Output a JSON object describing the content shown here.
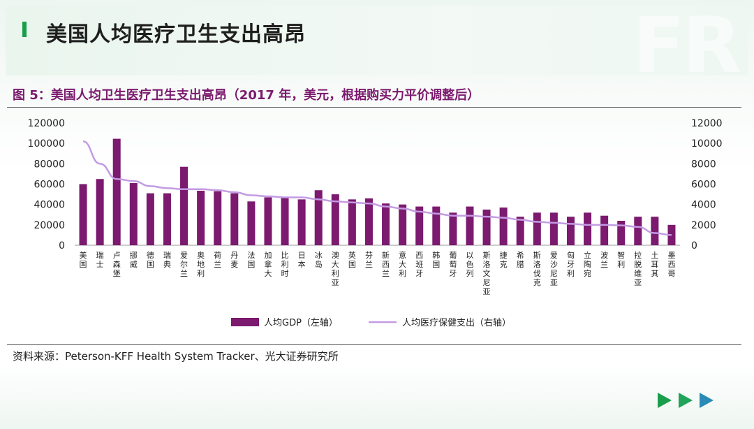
{
  "header": {
    "title": "美国人均医疗卫生支出高昂",
    "watermark": "FR"
  },
  "figure": {
    "caption": "图 5：美国人均卫生医疗卫生支出高昂（2017 年，美元，根据购买力平价调整后）",
    "source": "资料来源：Peterson-KFF Health System Tracker、光大证券研究所"
  },
  "colors": {
    "bar": "#7b1a6e",
    "line": "#c39be3",
    "accent_green": "#1a9e4b",
    "arrow_blue": "#2a8bb5"
  },
  "chart_data": {
    "type": "bar",
    "categories": [
      "美国",
      "瑞士",
      "卢森堡",
      "挪威",
      "德国",
      "瑞典",
      "爱尔兰",
      "奥地利",
      "荷兰",
      "丹麦",
      "法国",
      "加拿大",
      "比利时",
      "日本",
      "冰岛",
      "澳大利亚",
      "英国",
      "芬兰",
      "新西兰",
      "意大利",
      "西班牙",
      "韩国",
      "葡萄牙",
      "以色列",
      "斯洛文尼亚",
      "捷克",
      "希腊",
      "斯洛伐克",
      "爱沙尼亚",
      "匈牙利",
      "立陶宛",
      "波兰",
      "智利",
      "拉脱维亚",
      "土耳其",
      "墨西哥"
    ],
    "series": [
      {
        "name": "人均GDP（左轴）",
        "axis": "left",
        "type": "bar",
        "values": [
          60000,
          65000,
          104500,
          61000,
          51000,
          51000,
          77000,
          53500,
          53000,
          51000,
          43000,
          47000,
          47000,
          45000,
          54000,
          50000,
          45000,
          46000,
          41000,
          40000,
          38000,
          38000,
          32000,
          38000,
          35000,
          37000,
          28000,
          32000,
          32000,
          28000,
          32000,
          29000,
          24000,
          28000,
          28000,
          20000
        ]
      },
      {
        "name": "人均医疗保健支出（右轴）",
        "axis": "right",
        "type": "line",
        "values": [
          10200,
          8000,
          6500,
          6300,
          5800,
          5600,
          5500,
          5500,
          5400,
          5200,
          4900,
          4800,
          4700,
          4700,
          4500,
          4300,
          4200,
          4100,
          3800,
          3600,
          3300,
          3100,
          2900,
          2900,
          2800,
          2700,
          2500,
          2300,
          2200,
          2100,
          2000,
          2000,
          1950,
          1800,
          1200,
          1000
        ]
      }
    ],
    "left_axis": {
      "min": 0,
      "max": 120000,
      "ticks": [
        "0",
        "20000",
        "40000",
        "60000",
        "80000",
        "100000",
        "120000"
      ]
    },
    "right_axis": {
      "min": 0,
      "max": 12000,
      "ticks": [
        "0",
        "2000",
        "4000",
        "6000",
        "8000",
        "10000",
        "12000"
      ]
    },
    "grid": false,
    "legend_position": "bottom"
  }
}
